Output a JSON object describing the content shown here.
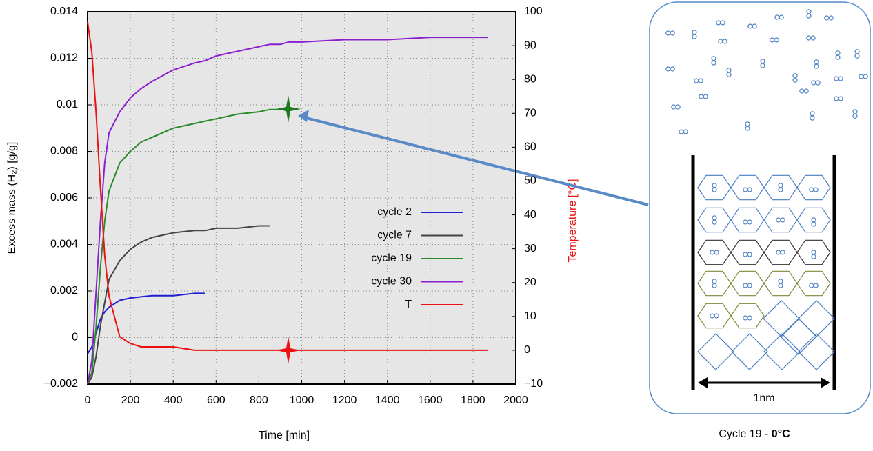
{
  "chart_data": {
    "type": "line",
    "xlabel": "Time [min]",
    "ylabel": "Excess mass (H₂) [g/g]",
    "y2label": "Temperature [°C]",
    "x": [
      0,
      20,
      40,
      60,
      80,
      100,
      150,
      200,
      250,
      300,
      400,
      500,
      550,
      600,
      700,
      800,
      850,
      900,
      940,
      1000,
      1200,
      1400,
      1600,
      1800,
      1870
    ],
    "series": [
      {
        "name": "cycle 2",
        "color": "#1f1fd0",
        "values": [
          -0.0007,
          -0.0004,
          0.0002,
          0.0008,
          0.0011,
          0.0013,
          0.0016,
          0.0017,
          0.00175,
          0.0018,
          0.0018,
          0.0019,
          0.0019,
          null,
          null,
          null,
          null,
          null,
          null,
          null,
          null,
          null,
          null,
          null,
          null
        ]
      },
      {
        "name": "cycle 7",
        "color": "#444444",
        "values": [
          -0.002,
          -0.0017,
          -0.0008,
          0.0005,
          0.0015,
          0.0025,
          0.0033,
          0.0038,
          0.0041,
          0.0043,
          0.0045,
          0.0046,
          0.0046,
          0.0047,
          0.0047,
          0.0048,
          0.0048,
          null,
          null,
          null,
          null,
          null,
          null,
          null,
          null
        ]
      },
      {
        "name": "cycle 19",
        "color": "#2a8a2a",
        "values": [
          -0.002,
          -0.0015,
          0.0005,
          0.003,
          0.005,
          0.0063,
          0.0075,
          0.008,
          0.0084,
          0.0086,
          0.009,
          0.0092,
          0.0093,
          0.0094,
          0.0096,
          0.0097,
          0.0098,
          0.0098,
          0.0099,
          null,
          null,
          null,
          null,
          null,
          null
        ]
      },
      {
        "name": "cycle 30",
        "color": "#8a1fd0",
        "values": [
          -0.002,
          -0.001,
          0.002,
          0.005,
          0.0075,
          0.0088,
          0.0097,
          0.0103,
          0.0107,
          0.011,
          0.0115,
          0.0118,
          0.0119,
          0.0121,
          0.0123,
          0.0125,
          0.0126,
          0.0126,
          0.0127,
          0.0127,
          0.0128,
          0.0128,
          0.0129,
          0.0129,
          0.0129
        ]
      },
      {
        "name": "T",
        "color": "#ee1111",
        "axis": "y2",
        "values": [
          97,
          88,
          70,
          48,
          28,
          16,
          4,
          2,
          1,
          1,
          1,
          0,
          0,
          0,
          0,
          0,
          0,
          0,
          0,
          0,
          0,
          0,
          0,
          0,
          0
        ]
      }
    ],
    "xlim": [
      0,
      2000
    ],
    "xticks": [
      0,
      200,
      400,
      600,
      800,
      1000,
      1200,
      1400,
      1600,
      1800,
      2000
    ],
    "ylim": [
      -0.002,
      0.014
    ],
    "yticks": [
      {
        "value": -0.002,
        "label": "−0.002"
      },
      0,
      0.002,
      0.004,
      0.006,
      0.008,
      0.01,
      0.012,
      0.014
    ],
    "y2lim": [
      -10,
      100
    ],
    "y2ticks": [
      {
        "value": -10,
        "label": "−10"
      },
      0,
      10,
      20,
      30,
      40,
      50,
      60,
      70,
      80,
      90,
      100
    ],
    "grid": true,
    "legend": "right"
  },
  "diagram": {
    "scale_label": "1nm",
    "caption": "Cycle 19 - ",
    "caption_bold": "0°C"
  }
}
